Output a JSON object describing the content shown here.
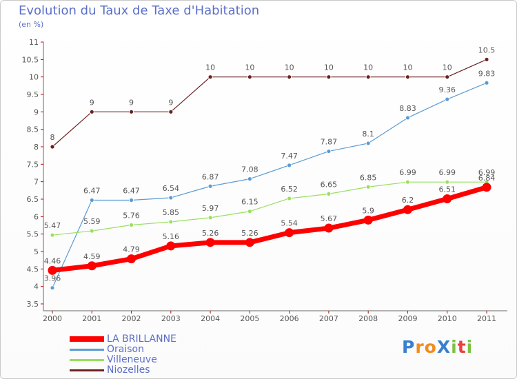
{
  "header": {
    "title": "Evolution du Taux de Taxe d'Habitation",
    "unit": "(en %)"
  },
  "logo": {
    "text": "ProXiti",
    "letters": [
      "P",
      "r",
      "o",
      "X",
      "i",
      "t",
      "i"
    ],
    "colors": [
      "#3a7fcf",
      "#f28c1e",
      "#f28c1e",
      "#3a7fcf",
      "#7cc242",
      "#e8423f",
      "#7cc242"
    ]
  },
  "chart_data": {
    "type": "line",
    "title": "Evolution du Taux de Taxe d'Habitation",
    "ylabel": "(en %)",
    "xlabel": "",
    "x": [
      "2000",
      "2001",
      "2002",
      "2003",
      "2004",
      "2005",
      "2006",
      "2007",
      "2008",
      "2009",
      "2010",
      "2011"
    ],
    "ylim": [
      3.5,
      11
    ],
    "yticks": [
      "3.5",
      "4",
      "4.5",
      "5",
      "5.5",
      "6",
      "6.5",
      "7",
      "7.5",
      "8",
      "8.5",
      "9",
      "9.5",
      "10",
      "10.5",
      "11"
    ],
    "legend_position": "bottom-left",
    "grid": false,
    "series": [
      {
        "name": "LA BRILLANNE",
        "color": "#ff0000",
        "emphasis": true,
        "values": [
          4.46,
          4.59,
          4.79,
          5.16,
          5.26,
          5.26,
          5.54,
          5.67,
          5.9,
          6.2,
          6.51,
          6.84
        ],
        "labels": [
          "4.46",
          "4.59",
          "4.79",
          "5.16",
          "5.26",
          "5.26",
          "5.54",
          "5.67",
          "5.9",
          "6.2",
          "6.51",
          "6.84"
        ]
      },
      {
        "name": "Oraison",
        "color": "#5b9bd5",
        "emphasis": false,
        "values": [
          3.96,
          6.47,
          6.47,
          6.54,
          6.87,
          7.08,
          7.47,
          7.87,
          8.1,
          8.83,
          9.36,
          9.83
        ],
        "labels": [
          "3.96",
          "6.47",
          "6.47",
          "6.54",
          "6.87",
          "7.08",
          "7.47",
          "7.87",
          "8.1",
          "8.83",
          "9.36",
          "9.83"
        ]
      },
      {
        "name": "Villeneuve",
        "color": "#99e05f",
        "emphasis": false,
        "values": [
          5.47,
          5.59,
          5.76,
          5.85,
          5.97,
          6.15,
          6.52,
          6.65,
          6.85,
          6.99,
          6.99,
          6.99
        ],
        "labels": [
          "5.47",
          "5.59",
          "5.76",
          "5.85",
          "5.97",
          "6.15",
          "6.52",
          "6.65",
          "6.85",
          "6.99",
          "6.99",
          "6.99"
        ]
      },
      {
        "name": "Niozelles",
        "color": "#6b2020",
        "emphasis": false,
        "values": [
          8,
          9,
          9,
          9,
          10,
          10,
          10,
          10,
          10,
          10,
          10,
          10.5
        ],
        "labels": [
          "8",
          "9",
          "9",
          "9",
          "10",
          "10",
          "10",
          "10",
          "10",
          "10",
          "10",
          "10.5"
        ]
      }
    ]
  }
}
